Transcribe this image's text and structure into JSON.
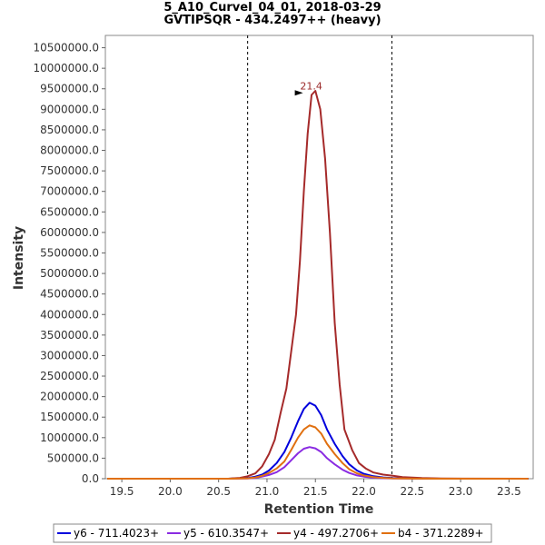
{
  "chart_data": {
    "type": "line",
    "title": "5_A10_CurveI_04_01, 2018-03-29",
    "subtitle": "GVTIPSQR - 434.2497++ (heavy)",
    "xlabel": "Retention Time",
    "ylabel": "Intensity",
    "xlim": [
      19.33,
      23.75
    ],
    "ylim": [
      0,
      10800000
    ],
    "xticks": [
      19.5,
      20.0,
      20.5,
      21.0,
      21.5,
      22.0,
      22.5,
      23.0,
      23.5
    ],
    "xtick_labels": [
      "19.5",
      "20.0",
      "20.5",
      "21.0",
      "21.5",
      "22.0",
      "22.5",
      "23.0",
      "23.5"
    ],
    "yticks": [
      0,
      500000,
      1000000,
      1500000,
      2000000,
      2500000,
      3000000,
      3500000,
      4000000,
      4500000,
      5000000,
      5500000,
      6000000,
      6500000,
      7000000,
      7500000,
      8000000,
      8500000,
      9000000,
      9500000,
      10000000,
      10500000
    ],
    "ytick_labels": [
      "0.0",
      "500000.0",
      "1000000.0",
      "1500000.0",
      "2000000.0",
      "2500000.0",
      "3000000.0",
      "3500000.0",
      "4000000.0",
      "4500000.0",
      "5000000.0",
      "5500000.0",
      "6000000.0",
      "6500000.0",
      "7000000.0",
      "7500000.0",
      "8000000.0",
      "8500000.0",
      "9000000.0",
      "9500000.0",
      "10000000.0",
      "10500000.0"
    ],
    "grid": false,
    "integration_boundaries": [
      20.8,
      22.29
    ],
    "peak_annotation": {
      "x": 21.4,
      "y": 9400000,
      "label": "21.4",
      "color": "#9b2a2a"
    },
    "legend_position": "bottom",
    "series": [
      {
        "name": "y6 - 711.4023+",
        "color": "#0000dd",
        "x": [
          19.35,
          20.0,
          20.6,
          20.8,
          20.88,
          20.95,
          21.02,
          21.1,
          21.18,
          21.25,
          21.32,
          21.38,
          21.44,
          21.5,
          21.56,
          21.62,
          21.7,
          21.78,
          21.85,
          21.93,
          22.0,
          22.1,
          22.2,
          22.3,
          22.5,
          22.8,
          23.7
        ],
        "y": [
          0,
          0,
          0,
          15000,
          50000,
          100000,
          200000,
          380000,
          650000,
          1000000,
          1400000,
          1700000,
          1850000,
          1780000,
          1550000,
          1200000,
          850000,
          550000,
          350000,
          200000,
          120000,
          60000,
          30000,
          15000,
          5000,
          0,
          0
        ]
      },
      {
        "name": "y5 - 610.3547+",
        "color": "#8a2be2",
        "x": [
          19.35,
          20.0,
          20.6,
          20.8,
          20.88,
          20.95,
          21.02,
          21.1,
          21.18,
          21.25,
          21.32,
          21.38,
          21.44,
          21.5,
          21.56,
          21.62,
          21.7,
          21.78,
          21.85,
          21.93,
          22.0,
          22.1,
          22.2,
          22.3,
          22.5,
          22.8,
          23.7
        ],
        "y": [
          0,
          0,
          0,
          5000,
          20000,
          50000,
          90000,
          160000,
          280000,
          450000,
          620000,
          730000,
          770000,
          740000,
          650000,
          500000,
          350000,
          220000,
          140000,
          80000,
          50000,
          25000,
          12000,
          5000,
          2000,
          0,
          0
        ]
      },
      {
        "name": "y4 - 497.2706+",
        "color": "#a52a2a",
        "x": [
          19.35,
          20.0,
          20.6,
          20.72,
          20.8,
          20.88,
          20.95,
          21.02,
          21.08,
          21.14,
          21.2,
          21.25,
          21.3,
          21.34,
          21.38,
          21.42,
          21.46,
          21.5,
          21.55,
          21.6,
          21.65,
          21.7,
          21.75,
          21.8,
          21.88,
          21.95,
          22.02,
          22.1,
          22.2,
          22.3,
          22.4,
          22.6,
          22.8,
          23.7
        ],
        "y": [
          0,
          0,
          0,
          20000,
          60000,
          130000,
          300000,
          600000,
          950000,
          1600000,
          2200000,
          3100000,
          4000000,
          5300000,
          7000000,
          8400000,
          9350000,
          9450000,
          9000000,
          7800000,
          6000000,
          3800000,
          2300000,
          1200000,
          700000,
          380000,
          250000,
          150000,
          100000,
          70000,
          40000,
          15000,
          5000,
          0
        ]
      },
      {
        "name": "b4 - 371.2289+",
        "color": "#e07010",
        "x": [
          19.35,
          20.0,
          20.6,
          20.8,
          20.88,
          20.95,
          21.02,
          21.1,
          21.18,
          21.25,
          21.32,
          21.38,
          21.44,
          21.5,
          21.56,
          21.62,
          21.7,
          21.78,
          21.85,
          21.93,
          22.0,
          22.1,
          22.2,
          22.3,
          22.5,
          22.8,
          23.7
        ],
        "y": [
          0,
          0,
          0,
          8000,
          30000,
          70000,
          140000,
          250000,
          420000,
          700000,
          1000000,
          1200000,
          1300000,
          1250000,
          1100000,
          850000,
          600000,
          380000,
          230000,
          130000,
          80000,
          40000,
          20000,
          8000,
          3000,
          0,
          0
        ]
      }
    ]
  }
}
